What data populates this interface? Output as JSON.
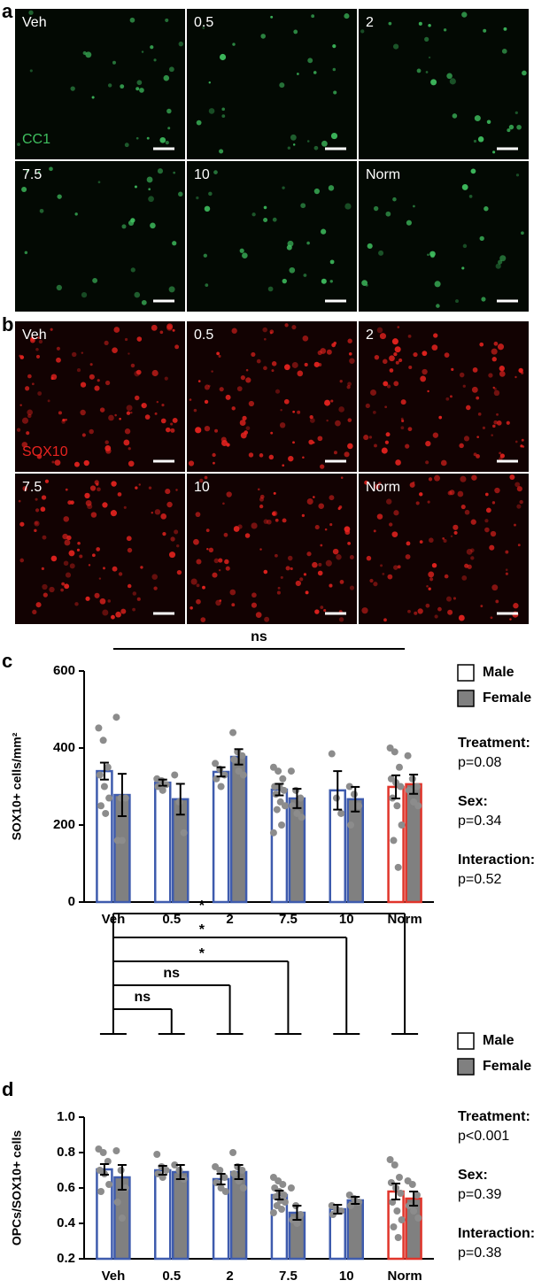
{
  "panel_a": {
    "label": "a",
    "stain": "CC1",
    "stain_color": "#3fbf5f",
    "tiles": [
      "Veh",
      "0.5",
      "2",
      "7.5",
      "10",
      "Norm"
    ]
  },
  "panel_b": {
    "label": "b",
    "stain": "SOX10",
    "stain_color": "#e8231f",
    "tiles": [
      "Veh",
      "0.5",
      "2",
      "7.5",
      "10",
      "Norm"
    ]
  },
  "chart_data": [
    {
      "type": "bar",
      "panel_label": "c",
      "y_label": "SOX10+ cells/mm²",
      "categories": [
        "Veh",
        "0.5",
        "2",
        "7.5",
        "10",
        "Norm"
      ],
      "ylim": [
        0,
        600
      ],
      "yticks": [
        0,
        200,
        400,
        600
      ],
      "point_color": "#8c8c8c",
      "series": [
        {
          "name": "Male",
          "color": "#ffffff",
          "edgecolors": [
            "#3e5bad",
            "#3e5bad",
            "#3e5bad",
            "#3e5bad",
            "#3e5bad",
            "#e0342a"
          ],
          "values": [
            340,
            310,
            338,
            292,
            290,
            299
          ],
          "errors": [
            22,
            8,
            12,
            15,
            50,
            30
          ],
          "points": [
            [
              452,
              420,
              350,
              330,
              300,
              270,
              250,
              230
            ],
            [
              320,
              315,
              305,
              300,
              290
            ],
            [
              360,
              345,
              330,
              320,
              300
            ],
            [
              350,
              340,
              320,
              300,
              300,
              290,
              280,
              260,
              250,
              240,
              200,
              180
            ],
            [
              385,
              270,
              230
            ],
            [
              400,
              390,
              350,
              320,
              310,
              300,
              270,
              250,
              200,
              160,
              90
            ]
          ]
        },
        {
          "name": "Female",
          "color": "#808080",
          "edgecolors": [
            "#3e5bad",
            "#3e5bad",
            "#3e5bad",
            "#3e5bad",
            "#3e5bad",
            "#e0342a"
          ],
          "values": [
            278,
            267,
            377,
            269,
            267,
            306
          ],
          "errors": [
            55,
            40,
            20,
            25,
            32,
            25
          ],
          "points": [
            [
              480,
              270,
              270,
              160,
              160
            ],
            [
              330,
              260,
              180
            ],
            [
              440,
              390,
              380,
              370,
              340,
              330
            ],
            [
              340,
              290,
              270,
              250,
              230,
              220
            ],
            [
              300,
              280,
              250,
              200
            ],
            [
              380,
              320,
              300,
              290,
              260,
              250
            ]
          ]
        }
      ],
      "comparisons": [
        {
          "groups": [
            0,
            5
          ],
          "label": "ns"
        }
      ],
      "stats": [
        {
          "label": "Treatment:",
          "value": "p=0.08"
        },
        {
          "label": "Sex:",
          "value": "p=0.34"
        },
        {
          "label": "Interaction:",
          "value": "p=0.52"
        }
      ]
    },
    {
      "type": "bar",
      "panel_label": "d",
      "y_label": "OPCs/SOX10+ cells",
      "categories": [
        "Veh",
        "0.5",
        "2",
        "7.5",
        "10",
        "Norm"
      ],
      "ylim": [
        0.2,
        1.0
      ],
      "yticks": [
        0.2,
        0.4,
        0.6,
        0.8,
        {
          "value": 1.0,
          "label": "1.0"
        }
      ],
      "point_color": "#8c8c8c",
      "series": [
        {
          "name": "Male",
          "color": "#ffffff",
          "edgecolors": [
            "#3e5bad",
            "#3e5bad",
            "#3e5bad",
            "#3e5bad",
            "#3e5bad",
            "#e0342a"
          ],
          "values": [
            0.705,
            0.7,
            0.65,
            0.56,
            0.48,
            0.58
          ],
          "errors": [
            0.03,
            0.025,
            0.03,
            0.025,
            0.025,
            0.045
          ],
          "points": [
            [
              0.82,
              0.8,
              0.75,
              0.7,
              0.68,
              0.62,
              0.58
            ],
            [
              0.79,
              0.72,
              0.7,
              0.68,
              0.66
            ],
            [
              0.72,
              0.7,
              0.66,
              0.63,
              0.6,
              0.58
            ],
            [
              0.66,
              0.64,
              0.62,
              0.6,
              0.58,
              0.56,
              0.55,
              0.53,
              0.52,
              0.5,
              0.48,
              0.46
            ],
            [
              0.5,
              0.48,
              0.47,
              0.45
            ],
            [
              0.76,
              0.73,
              0.66,
              0.63,
              0.6,
              0.57,
              0.52,
              0.47,
              0.42,
              0.38,
              0.32
            ]
          ]
        },
        {
          "name": "Female",
          "color": "#808080",
          "edgecolors": [
            "#3e5bad",
            "#3e5bad",
            "#3e5bad",
            "#3e5bad",
            "#3e5bad",
            "#e0342a"
          ],
          "values": [
            0.66,
            0.69,
            0.69,
            0.46,
            0.53,
            0.54
          ],
          "errors": [
            0.07,
            0.04,
            0.04,
            0.04,
            0.02,
            0.04
          ],
          "points": [
            [
              0.81,
              0.7,
              0.6,
              0.52,
              0.43
            ],
            [
              0.73,
              0.7,
              0.65
            ],
            [
              0.8,
              0.72,
              0.7,
              0.68,
              0.64,
              0.6
            ],
            [
              0.6,
              0.5,
              0.45,
              0.42,
              0.4
            ],
            [
              0.56,
              0.54,
              0.52,
              0.5
            ],
            [
              0.64,
              0.62,
              0.56,
              0.5,
              0.47,
              0.43
            ]
          ]
        }
      ],
      "comparisons": [
        {
          "groups": [
            0,
            1
          ],
          "label": "ns"
        },
        {
          "groups": [
            0,
            2
          ],
          "label": "ns"
        },
        {
          "groups": [
            0,
            3
          ],
          "label": "*"
        },
        {
          "groups": [
            0,
            4
          ],
          "label": "*"
        },
        {
          "groups": [
            0,
            5
          ],
          "label": "*"
        }
      ],
      "stats": [
        {
          "label": "Treatment:",
          "value": "p<0.001"
        },
        {
          "label": "Sex:",
          "value": "p=0.39"
        },
        {
          "label": "Interaction:",
          "value": "p=0.38"
        }
      ]
    }
  ]
}
